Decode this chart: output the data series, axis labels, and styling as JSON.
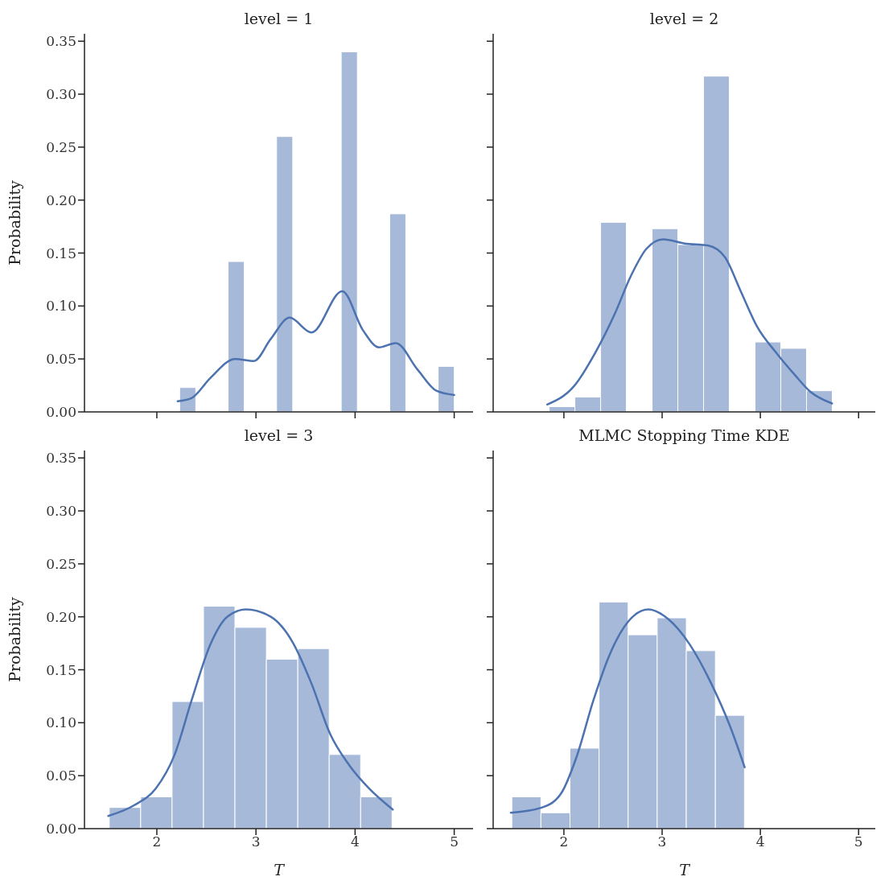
{
  "chart_data": [
    {
      "type": "histogram",
      "title": "level = 1",
      "ylabel": "Probability",
      "tick_labels": "y",
      "xlim": [
        1.27,
        5.19
      ],
      "xticks": [
        2,
        3,
        4,
        5
      ],
      "ylim": [
        0,
        0.357
      ],
      "yticks": [
        {
          "value": 0,
          "label": "0.00"
        },
        {
          "value": 0.05,
          "label": "0.05"
        },
        {
          "value": 0.1,
          "label": "0.10"
        },
        {
          "value": 0.15,
          "label": "0.15"
        },
        {
          "value": 0.2,
          "label": "0.20"
        },
        {
          "value": 0.25,
          "label": "0.25"
        },
        {
          "value": 0.3,
          "label": "0.30"
        },
        {
          "value": 0.35,
          "label": "0.35"
        }
      ],
      "series": [
        {
          "color": "#a6b9d9",
          "bins": [
            2.23,
            2.393,
            2.556,
            2.719,
            2.882,
            3.045,
            3.208,
            3.371,
            3.534,
            3.697,
            3.86,
            4.023,
            4.186,
            4.349,
            4.512,
            4.675,
            4.838,
            5.001
          ],
          "values": [
            0.023,
            0,
            0,
            0.142,
            0,
            0,
            0.26,
            0,
            0,
            0,
            0.34,
            0,
            0,
            0.187,
            0,
            0,
            0.043
          ]
        },
        {
          "type": "line",
          "color": "#4c72b0",
          "x": [
            2.21,
            2.35,
            2.54,
            2.79,
            2.98,
            3.15,
            3.34,
            3.56,
            3.87,
            4.08,
            4.24,
            4.41,
            4.63,
            4.82,
            5.0
          ],
          "values": [
            0.01,
            0.013,
            0.032,
            0.05,
            0.048,
            0.069,
            0.089,
            0.075,
            0.114,
            0.077,
            0.061,
            0.065,
            0.04,
            0.02,
            0.016
          ]
        }
      ]
    },
    {
      "type": "histogram",
      "title": "level = 2",
      "tick_labels": false,
      "xlim": [
        1.28,
        5.17
      ],
      "xticks": [
        2,
        3,
        4,
        5
      ],
      "ylim": [
        0,
        0.357
      ],
      "yticks": [
        0,
        0.05,
        0.1,
        0.15,
        0.2,
        0.25,
        0.3,
        0.35
      ],
      "series": [
        {
          "color": "#a6b9d9",
          "bins": [
            1.85,
            2.112,
            2.374,
            2.636,
            2.898,
            3.16,
            3.422,
            3.684,
            3.946,
            4.208,
            4.47,
            4.732
          ],
          "values": [
            0.005,
            0.014,
            0.179,
            0,
            0.173,
            0.158,
            0.317,
            0,
            0.066,
            0.06,
            0.02
          ]
        },
        {
          "type": "line",
          "color": "#4c72b0",
          "x": [
            1.83,
            2.1,
            2.32,
            2.52,
            2.68,
            2.84,
            3.01,
            3.23,
            3.47,
            3.64,
            3.8,
            3.97,
            4.16,
            4.35,
            4.51,
            4.73
          ],
          "values": [
            0.007,
            0.024,
            0.056,
            0.093,
            0.128,
            0.154,
            0.163,
            0.159,
            0.157,
            0.146,
            0.114,
            0.08,
            0.056,
            0.035,
            0.019,
            0.008
          ]
        }
      ]
    },
    {
      "type": "histogram",
      "title": "level = 3",
      "ylabel": "Probability",
      "xlabel": "T",
      "xlim": [
        1.27,
        5.19
      ],
      "xticks": [
        2,
        3,
        4,
        5
      ],
      "ylim": [
        0,
        0.357
      ],
      "yticks": [
        {
          "value": 0,
          "label": "0.00"
        },
        {
          "value": 0.05,
          "label": "0.05"
        },
        {
          "value": 0.1,
          "label": "0.10"
        },
        {
          "value": 0.15,
          "label": "0.15"
        },
        {
          "value": 0.2,
          "label": "0.20"
        },
        {
          "value": 0.25,
          "label": "0.25"
        },
        {
          "value": 0.3,
          "label": "0.30"
        },
        {
          "value": 0.35,
          "label": "0.35"
        }
      ],
      "series": [
        {
          "color": "#a6b9d9",
          "bins": [
            1.52,
            1.837,
            2.154,
            2.471,
            2.788,
            3.105,
            3.422,
            3.739,
            4.056,
            4.373
          ],
          "values": [
            0.02,
            0.03,
            0.12,
            0.21,
            0.19,
            0.16,
            0.17,
            0.07,
            0.03
          ]
        },
        {
          "type": "line",
          "color": "#4c72b0",
          "x": [
            1.51,
            1.77,
            1.99,
            2.18,
            2.35,
            2.54,
            2.71,
            2.9,
            3.15,
            3.37,
            3.56,
            3.75,
            3.94,
            4.14,
            4.38
          ],
          "values": [
            0.012,
            0.022,
            0.038,
            0.07,
            0.121,
            0.174,
            0.2,
            0.207,
            0.2,
            0.176,
            0.137,
            0.089,
            0.06,
            0.038,
            0.018
          ]
        }
      ]
    },
    {
      "type": "histogram",
      "title": "MLMC Stopping Time KDE",
      "xlabel": "T",
      "tick_labels": "x",
      "xlim": [
        1.28,
        5.17
      ],
      "xticks": [
        2,
        3,
        4,
        5
      ],
      "ylim": [
        0,
        0.357
      ],
      "yticks": [
        0,
        0.05,
        0.1,
        0.15,
        0.2,
        0.25,
        0.3,
        0.35
      ],
      "series": [
        {
          "color": "#a6b9d9",
          "bins": [
            1.47,
            1.766,
            2.062,
            2.358,
            2.654,
            2.95,
            3.246,
            3.542,
            3.838
          ],
          "values": [
            0.03,
            0.015,
            0.076,
            0.214,
            0.183,
            0.199,
            0.168,
            0.107
          ]
        },
        {
          "type": "line",
          "color": "#4c72b0",
          "x": [
            1.46,
            1.78,
            1.97,
            2.13,
            2.3,
            2.46,
            2.65,
            2.86,
            3.06,
            3.28,
            3.5,
            3.69,
            3.84
          ],
          "values": [
            0.015,
            0.02,
            0.033,
            0.068,
            0.121,
            0.163,
            0.195,
            0.207,
            0.198,
            0.174,
            0.137,
            0.097,
            0.058
          ]
        }
      ]
    }
  ]
}
